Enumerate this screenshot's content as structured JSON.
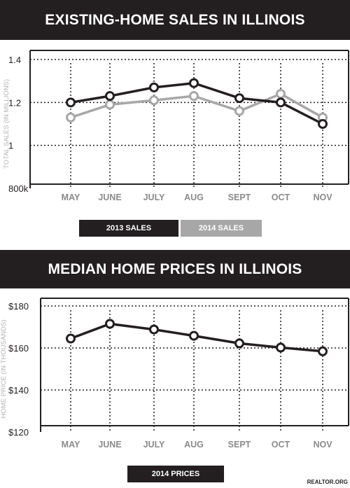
{
  "chart_data": [
    {
      "type": "line",
      "title": "EXISTING-HOME SALES IN ILLINOIS",
      "ylabel": "TOTAL SALES (IN MILLIONS)",
      "categories": [
        "MAY",
        "JUNE",
        "JULY",
        "AUG",
        "SEPT",
        "OCT",
        "NOV"
      ],
      "ylim": [
        0.8,
        1.4
      ],
      "yticks": [
        {
          "value": 1.4,
          "label": "1.4"
        },
        {
          "value": 1.2,
          "label": "1.2"
        },
        {
          "value": 1.0,
          "label": "1"
        },
        {
          "value": 0.8,
          "label": "800k"
        }
      ],
      "series": [
        {
          "name": "2013 SALES",
          "color": "#231f20",
          "values": [
            1.2,
            1.23,
            1.27,
            1.29,
            1.22,
            1.2,
            1.1
          ]
        },
        {
          "name": "2014 SALES",
          "color": "#a7a7a7",
          "values": [
            1.13,
            1.19,
            1.21,
            1.23,
            1.16,
            1.24,
            1.13
          ]
        }
      ],
      "grid": true
    },
    {
      "type": "line",
      "title": "MEDIAN HOME PRICES IN ILLINOIS",
      "ylabel": "HOME PRICE (IN THOUSANDS)",
      "categories": [
        "MAY",
        "JUNE",
        "JULY",
        "AUG",
        "SEPT",
        "OCT",
        "NOV"
      ],
      "ylim": [
        120,
        180
      ],
      "yticks": [
        {
          "value": 180,
          "label": "$180"
        },
        {
          "value": 160,
          "label": "$160"
        },
        {
          "value": 140,
          "label": "$140"
        },
        {
          "value": 120,
          "label": "$120"
        }
      ],
      "series": [
        {
          "name": "2014 PRICES",
          "color": "#231f20",
          "values": [
            164.5,
            171.5,
            168.8,
            165.8,
            162.2,
            160.2,
            158.4
          ]
        }
      ],
      "grid": true
    }
  ],
  "credit": "REALTOR.ORG"
}
